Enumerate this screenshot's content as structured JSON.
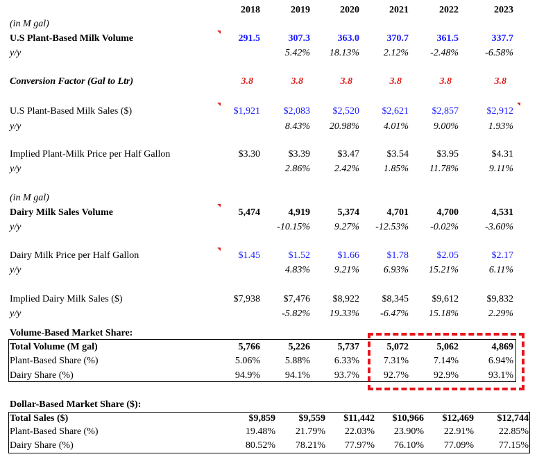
{
  "years": [
    "2018",
    "2019",
    "2020",
    "2021",
    "2022",
    "2023"
  ],
  "unit_note_1": "(in M gal)",
  "plant_volume": {
    "label": "U.S Plant-Based Milk Volume",
    "values": [
      "291.5",
      "307.3",
      "363.0",
      "370.7",
      "361.5",
      "337.7"
    ]
  },
  "plant_volume_yy": {
    "label": "y/y",
    "values": [
      "",
      "5.42%",
      "18.13%",
      "2.12%",
      "-2.48%",
      "-6.58%"
    ]
  },
  "conversion": {
    "label": "Conversion Factor (Gal to Ltr)",
    "values": [
      "3.8",
      "3.8",
      "3.8",
      "3.8",
      "3.8",
      "3.8"
    ]
  },
  "plant_sales": {
    "label": "U.S Plant-Based Milk Sales ($)",
    "values": [
      "$1,921",
      "$2,083",
      "$2,520",
      "$2,621",
      "$2,857",
      "$2,912"
    ]
  },
  "plant_sales_yy": {
    "label": "y/y",
    "values": [
      "",
      "8.43%",
      "20.98%",
      "4.01%",
      "9.00%",
      "1.93%"
    ]
  },
  "plant_price": {
    "label": "Implied Plant-Milk Price per Half Gallon",
    "values": [
      "$3.30",
      "$3.39",
      "$3.47",
      "$3.54",
      "$3.95",
      "$4.31"
    ]
  },
  "plant_price_yy": {
    "label": "y/y",
    "values": [
      "",
      "2.86%",
      "2.42%",
      "1.85%",
      "11.78%",
      "9.11%"
    ]
  },
  "unit_note_2": "(in M gal)",
  "dairy_volume": {
    "label": "Dairy Milk Sales Volume",
    "values": [
      "5,474",
      "4,919",
      "5,374",
      "4,701",
      "4,700",
      "4,531"
    ]
  },
  "dairy_volume_yy": {
    "label": "y/y",
    "values": [
      "",
      "-10.15%",
      "9.27%",
      "-12.53%",
      "-0.02%",
      "-3.60%"
    ]
  },
  "dairy_price": {
    "label": "Dairy Milk Price per Half Gallon",
    "values": [
      "$1.45",
      "$1.52",
      "$1.66",
      "$1.78",
      "$2.05",
      "$2.17"
    ]
  },
  "dairy_price_yy": {
    "label": "y/y",
    "values": [
      "",
      "4.83%",
      "9.21%",
      "6.93%",
      "15.21%",
      "6.11%"
    ]
  },
  "dairy_sales": {
    "label": "Implied Dairy Milk Sales ($)",
    "values": [
      "$7,938",
      "$7,476",
      "$8,922",
      "$8,345",
      "$9,612",
      "$9,832"
    ]
  },
  "dairy_sales_yy": {
    "label": "y/y",
    "values": [
      "",
      "-5.82%",
      "19.33%",
      "-6.47%",
      "15.18%",
      "2.29%"
    ]
  },
  "volume_share": {
    "heading": "Volume-Based Market Share:",
    "total": {
      "label": "Total Volume (M gal)",
      "values": [
        "5,766",
        "5,226",
        "5,737",
        "5,072",
        "5,062",
        "4,869"
      ]
    },
    "plant": {
      "label": "Plant-Based Share (%)",
      "values": [
        "5.06%",
        "5.88%",
        "6.33%",
        "7.31%",
        "7.14%",
        "6.94%"
      ]
    },
    "dairy": {
      "label": "Dairy Share (%)",
      "values": [
        "94.9%",
        "94.1%",
        "93.7%",
        "92.7%",
        "92.9%",
        "93.1%"
      ]
    }
  },
  "dollar_share": {
    "heading": "Dollar-Based Market Share ($):",
    "total": {
      "label": "Total Sales ($)",
      "values": [
        "$9,859",
        "$9,559",
        "$11,442",
        "$10,966",
        "$12,469",
        "$12,744"
      ]
    },
    "plant": {
      "label": "Plant-Based Share (%)",
      "values": [
        "19.48%",
        "21.79%",
        "22.03%",
        "23.90%",
        "22.91%",
        "22.85%"
      ]
    },
    "dairy": {
      "label": "Dairy Share (%)",
      "values": [
        "80.52%",
        "78.21%",
        "77.97%",
        "76.10%",
        "77.09%",
        "77.15%"
      ]
    }
  },
  "colors": {
    "input_blue": "#1a1aff",
    "highlight_red": "#e8141c"
  }
}
